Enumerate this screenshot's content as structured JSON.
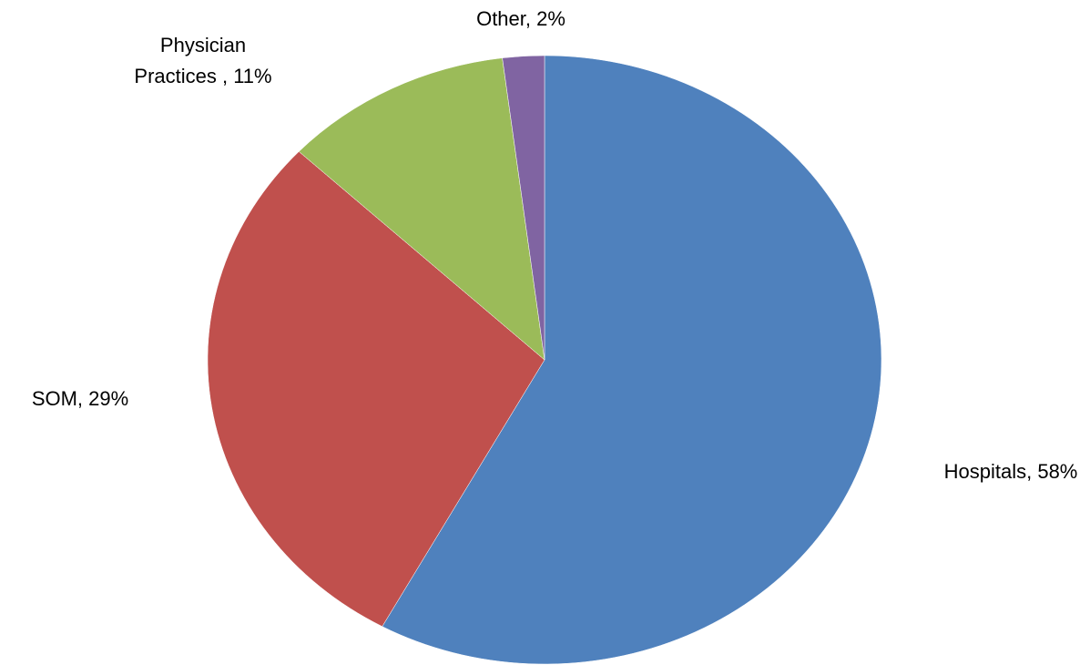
{
  "chart_data": {
    "type": "pie",
    "title": "",
    "start_angle_deg": 0,
    "direction": "clockwise",
    "legend": "none",
    "slices": [
      {
        "label": "Hospitals",
        "value": 58,
        "value_text": "58%",
        "color": "#4F81BD",
        "label_lines": [
          "Hospitals, 58%"
        ]
      },
      {
        "label": "SOM",
        "value": 29,
        "value_text": "29%",
        "color": "#C0504D",
        "label_lines": [
          "SOM, 29%"
        ]
      },
      {
        "label": "Physician Practices",
        "value": 11,
        "value_text": "11%",
        "color": "#9BBB59",
        "label_lines": [
          "Physician",
          "Practices , 11%"
        ]
      },
      {
        "label": "Other",
        "value": 2,
        "value_text": "2%",
        "color": "#8064A2",
        "label_lines": [
          "Other, 2%"
        ]
      }
    ]
  }
}
